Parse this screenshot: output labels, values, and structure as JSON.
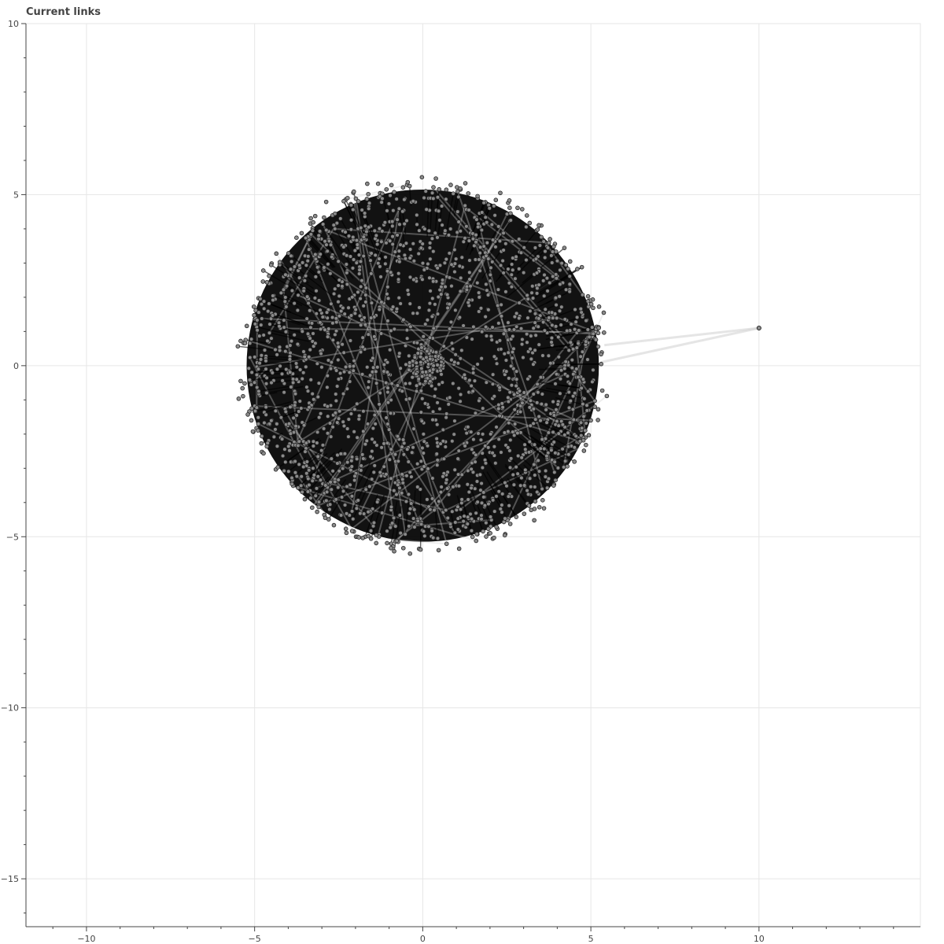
{
  "title": "Current links",
  "colors": {
    "background": "#ffffff",
    "grid": "#e6e6e6",
    "axis": "#444444",
    "node_fill": "#8a8a8a",
    "node_stroke": "#222222",
    "edge_dense": "#000000",
    "edge_light": "#cfcfcf"
  },
  "chart_data": {
    "type": "network",
    "title": "Current links",
    "xlim": [
      -11.8,
      14.8
    ],
    "ylim": [
      -16.4,
      10
    ],
    "x_ticks": [
      -10,
      -5,
      0,
      5,
      10
    ],
    "y_ticks": [
      -15,
      -10,
      -5,
      0,
      5,
      10
    ],
    "x_tick_labels": [
      "−10",
      "−5",
      "0",
      "5",
      "10"
    ],
    "y_tick_labels": [
      "−15",
      "−10",
      "−5",
      "0",
      "5",
      "10"
    ],
    "minor_tick_step": 1,
    "grid": true,
    "cluster": {
      "center": [
        0,
        0
      ],
      "radius": 5.4,
      "node_count": 2000,
      "edges": "dense"
    },
    "outlier_nodes": [
      {
        "x": 10.0,
        "y": 1.1,
        "links_to": [
          [
            5.4,
            0.6
          ],
          [
            5.3,
            0.1
          ]
        ]
      }
    ],
    "edge_representation": "semi-transparent black lines between nodes"
  }
}
